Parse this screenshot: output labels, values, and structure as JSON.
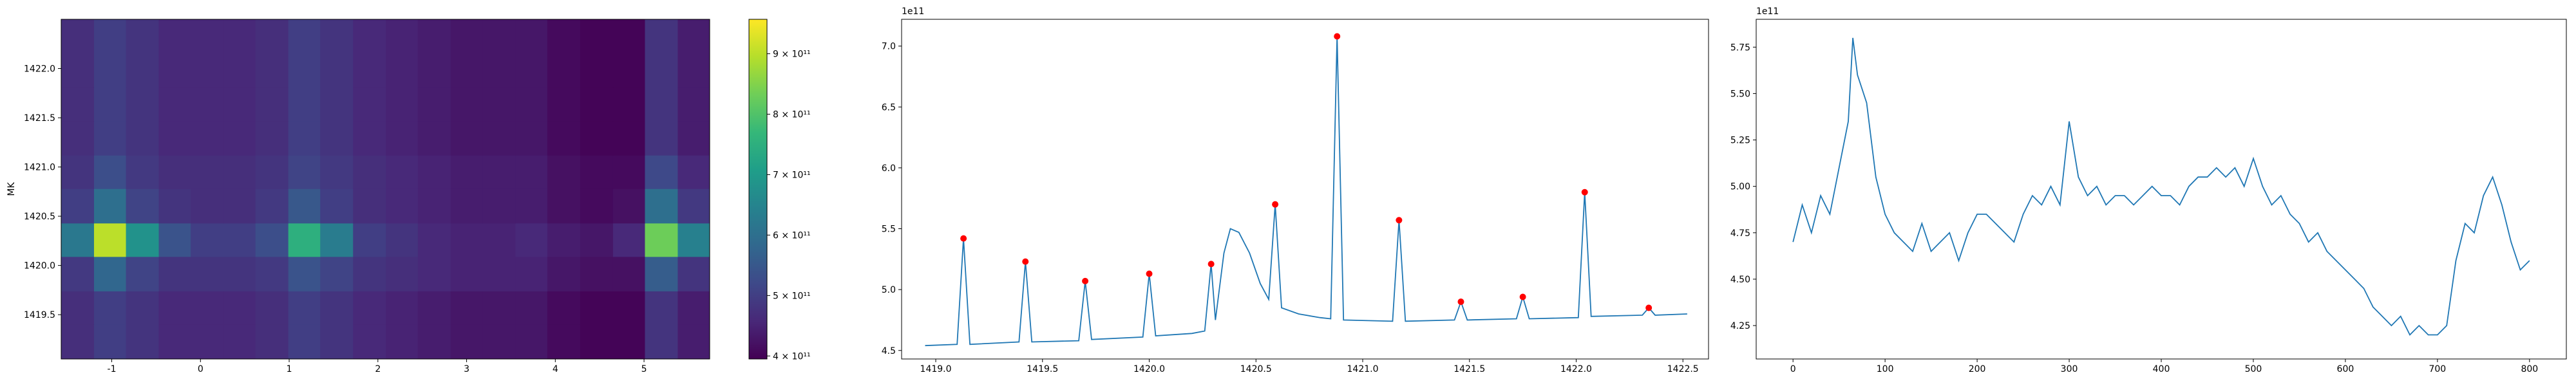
{
  "chart_data": [
    {
      "type": "heatmap",
      "ylabel": "MK",
      "x_edges": [
        -1.57,
        -1.2,
        -0.84,
        -0.47,
        -0.11,
        0.26,
        0.62,
        0.99,
        1.35,
        1.72,
        2.09,
        2.45,
        2.82,
        3.18,
        3.55,
        3.91,
        4.28,
        4.65,
        5.01,
        5.38,
        5.74
      ],
      "y_edges": [
        1419.05,
        1419.4,
        1419.74,
        1420.09,
        1420.43,
        1420.78,
        1421.12,
        1421.47,
        1421.81,
        1422.16,
        1422.5
      ],
      "z": [
        [
          470000000000.0,
          500000000000.0,
          480000000000.0,
          460000000000.0,
          460000000000.0,
          460000000000.0,
          470000000000.0,
          500000000000.0,
          480000000000.0,
          460000000000.0,
          450000000000.0,
          440000000000.0,
          430000000000.0,
          430000000000.0,
          430000000000.0,
          410000000000.0,
          400000000000.0,
          400000000000.0,
          480000000000.0,
          440000000000.0
        ],
        [
          470000000000.0,
          500000000000.0,
          480000000000.0,
          460000000000.0,
          460000000000.0,
          460000000000.0,
          470000000000.0,
          500000000000.0,
          480000000000.0,
          460000000000.0,
          450000000000.0,
          440000000000.0,
          430000000000.0,
          430000000000.0,
          430000000000.0,
          410000000000.0,
          400000000000.0,
          400000000000.0,
          480000000000.0,
          440000000000.0
        ],
        [
          490000000000.0,
          580000000000.0,
          510000000000.0,
          480000000000.0,
          480000000000.0,
          480000000000.0,
          490000000000.0,
          540000000000.0,
          510000000000.0,
          480000000000.0,
          470000000000.0,
          460000000000.0,
          450000000000.0,
          450000000000.0,
          450000000000.0,
          430000000000.0,
          420000000000.0,
          420000000000.0,
          560000000000.0,
          480000000000.0
        ],
        [
          620000000000.0,
          900000000000.0,
          680000000000.0,
          540000000000.0,
          500000000000.0,
          500000000000.0,
          530000000000.0,
          750000000000.0,
          630000000000.0,
          500000000000.0,
          480000000000.0,
          460000000000.0,
          450000000000.0,
          450000000000.0,
          460000000000.0,
          440000000000.0,
          430000000000.0,
          460000000000.0,
          830000000000.0,
          640000000000.0
        ],
        [
          500000000000.0,
          600000000000.0,
          510000000000.0,
          480000000000.0,
          470000000000.0,
          470000000000.0,
          490000000000.0,
          550000000000.0,
          500000000000.0,
          470000000000.0,
          460000000000.0,
          450000000000.0,
          440000000000.0,
          440000000000.0,
          440000000000.0,
          420000000000.0,
          410000000000.0,
          420000000000.0,
          600000000000.0,
          490000000000.0
        ],
        [
          480000000000.0,
          530000000000.0,
          490000000000.0,
          470000000000.0,
          470000000000.0,
          470000000000.0,
          480000000000.0,
          510000000000.0,
          490000000000.0,
          470000000000.0,
          460000000000.0,
          450000000000.0,
          440000000000.0,
          440000000000.0,
          440000000000.0,
          420000000000.0,
          410000000000.0,
          410000000000.0,
          520000000000.0,
          460000000000.0
        ],
        [
          470000000000.0,
          500000000000.0,
          480000000000.0,
          460000000000.0,
          460000000000.0,
          460000000000.0,
          470000000000.0,
          500000000000.0,
          480000000000.0,
          460000000000.0,
          450000000000.0,
          440000000000.0,
          430000000000.0,
          430000000000.0,
          430000000000.0,
          410000000000.0,
          400000000000.0,
          400000000000.0,
          480000000000.0,
          440000000000.0
        ],
        [
          470000000000.0,
          500000000000.0,
          480000000000.0,
          460000000000.0,
          460000000000.0,
          460000000000.0,
          470000000000.0,
          500000000000.0,
          480000000000.0,
          460000000000.0,
          450000000000.0,
          440000000000.0,
          430000000000.0,
          430000000000.0,
          430000000000.0,
          410000000000.0,
          400000000000.0,
          400000000000.0,
          480000000000.0,
          440000000000.0
        ],
        [
          470000000000.0,
          500000000000.0,
          480000000000.0,
          460000000000.0,
          460000000000.0,
          460000000000.0,
          470000000000.0,
          500000000000.0,
          480000000000.0,
          460000000000.0,
          450000000000.0,
          440000000000.0,
          430000000000.0,
          430000000000.0,
          430000000000.0,
          410000000000.0,
          400000000000.0,
          400000000000.0,
          480000000000.0,
          440000000000.0
        ],
        [
          470000000000.0,
          500000000000.0,
          480000000000.0,
          460000000000.0,
          460000000000.0,
          460000000000.0,
          470000000000.0,
          500000000000.0,
          480000000000.0,
          460000000000.0,
          450000000000.0,
          440000000000.0,
          430000000000.0,
          430000000000.0,
          430000000000.0,
          410000000000.0,
          400000000000.0,
          400000000000.0,
          480000000000.0,
          440000000000.0
        ]
      ],
      "colormap": [
        "#440154",
        "#482878",
        "#3e4989",
        "#31688e",
        "#26828e",
        "#1f9e89",
        "#35b779",
        "#6ece58",
        "#b5de2b",
        "#fde725"
      ],
      "xlim": [
        -1.57,
        5.74
      ],
      "ylim": [
        1419.05,
        1422.5
      ],
      "xticks": [
        -1,
        0,
        1,
        2,
        3,
        4,
        5
      ],
      "yticks": [
        1419.5,
        {
          "value": 1420,
          "label": "1420.0"
        },
        1420.5,
        {
          "value": 1421,
          "label": "1421.0"
        },
        1421.5,
        {
          "value": 1422,
          "label": "1422.0"
        }
      ],
      "zlim": [
        395000000000.0,
        957000000000.0
      ],
      "zticks": [
        {
          "value": 400000000000.0,
          "label": "4 × 10¹¹"
        },
        {
          "value": 500000000000.0,
          "label": "5 × 10¹¹"
        },
        {
          "value": 600000000000.0,
          "label": "6 × 10¹¹"
        },
        {
          "value": 700000000000.0,
          "label": "7 × 10¹¹"
        },
        {
          "value": 800000000000.0,
          "label": "8 × 10¹¹"
        },
        {
          "value": 900000000000.0,
          "label": "9 × 10¹¹"
        }
      ]
    },
    {
      "type": "line",
      "offset_label": "1e11",
      "xlim": [
        1418.84,
        1422.62
      ],
      "ylim": [
        4.43,
        7.22
      ],
      "xticks": [
        {
          "value": 1419,
          "label": "1419.0"
        },
        1419.5,
        {
          "value": 1420,
          "label": "1420.0"
        },
        1420.5,
        {
          "value": 1421,
          "label": "1421.0"
        },
        1421.5,
        {
          "value": 1422,
          "label": "1422.0"
        },
        1422.5
      ],
      "yticks": [
        4.5,
        {
          "value": 5,
          "label": "5.0"
        },
        5.5,
        {
          "value": 6,
          "label": "6.0"
        },
        6.5,
        {
          "value": 7,
          "label": "7.0"
        }
      ],
      "series": [
        {
          "style": "line",
          "color": "#1f77b4",
          "x": [
            1418.95,
            1419.1,
            1419.13,
            1419.16,
            1419.39,
            1419.42,
            1419.45,
            1419.67,
            1419.7,
            1419.73,
            1419.97,
            1420.0,
            1420.03,
            1420.2,
            1420.26,
            1420.29,
            1420.31,
            1420.35,
            1420.38,
            1420.42,
            1420.47,
            1420.52,
            1420.56,
            1420.59,
            1420.62,
            1420.7,
            1420.8,
            1420.85,
            1420.88,
            1420.91,
            1421.14,
            1421.17,
            1421.2,
            1421.43,
            1421.46,
            1421.49,
            1421.72,
            1421.75,
            1421.78,
            1422.01,
            1422.04,
            1422.07,
            1422.31,
            1422.34,
            1422.37,
            1422.52
          ],
          "values": [
            4.54,
            4.55,
            5.42,
            4.55,
            4.57,
            5.23,
            4.57,
            4.58,
            5.07,
            4.59,
            4.61,
            5.13,
            4.62,
            4.64,
            4.66,
            5.21,
            4.75,
            5.3,
            5.5,
            5.47,
            5.3,
            5.05,
            4.92,
            5.7,
            4.85,
            4.8,
            4.77,
            4.76,
            7.08,
            4.75,
            4.74,
            5.57,
            4.74,
            4.75,
            4.9,
            4.75,
            4.76,
            4.94,
            4.76,
            4.77,
            5.8,
            4.78,
            4.79,
            4.85,
            4.79,
            4.8
          ]
        },
        {
          "style": "points",
          "color": "#ff0000",
          "x": [
            1419.13,
            1419.42,
            1419.7,
            1420.0,
            1420.29,
            1420.59,
            1420.88,
            1421.17,
            1421.46,
            1421.75,
            1422.04,
            1422.34
          ],
          "values": [
            5.42,
            5.23,
            5.07,
            5.13,
            5.21,
            5.7,
            7.08,
            5.57,
            4.9,
            4.94,
            5.8,
            4.85
          ]
        }
      ]
    },
    {
      "type": "line",
      "offset_label": "1e11",
      "xlim": [
        -40,
        840
      ],
      "ylim": [
        4.07,
        5.9
      ],
      "xticks": [
        0,
        100,
        200,
        300,
        400,
        500,
        600,
        700,
        800
      ],
      "yticks": [
        4.25,
        {
          "value": 4.5,
          "label": "4.50"
        },
        4.75,
        {
          "value": 5,
          "label": "5.00"
        },
        5.25,
        {
          "value": 5.5,
          "label": "5.50"
        },
        5.75
      ],
      "series": [
        {
          "style": "line",
          "color": "#1f77b4",
          "x": [
            0,
            10,
            20,
            30,
            40,
            50,
            60,
            65,
            70,
            80,
            90,
            100,
            110,
            120,
            130,
            140,
            150,
            160,
            170,
            180,
            190,
            200,
            210,
            220,
            230,
            240,
            250,
            260,
            270,
            280,
            290,
            300,
            310,
            320,
            330,
            340,
            350,
            360,
            370,
            380,
            390,
            400,
            410,
            420,
            430,
            440,
            450,
            460,
            470,
            480,
            490,
            500,
            510,
            520,
            530,
            540,
            550,
            560,
            570,
            580,
            590,
            600,
            610,
            620,
            630,
            640,
            650,
            660,
            670,
            680,
            690,
            700,
            710,
            720,
            730,
            740,
            750,
            760,
            770,
            780,
            790,
            800
          ],
          "values": [
            4.7,
            4.9,
            4.75,
            4.95,
            4.85,
            5.1,
            5.35,
            5.8,
            5.6,
            5.45,
            5.05,
            4.85,
            4.75,
            4.7,
            4.65,
            4.8,
            4.65,
            4.7,
            4.75,
            4.6,
            4.75,
            4.85,
            4.85,
            4.8,
            4.75,
            4.7,
            4.85,
            4.95,
            4.9,
            5.0,
            4.9,
            5.35,
            5.05,
            4.95,
            5.0,
            4.9,
            4.95,
            4.95,
            4.9,
            4.95,
            5.0,
            4.95,
            4.95,
            4.9,
            5.0,
            5.05,
            5.05,
            5.1,
            5.05,
            5.1,
            5.0,
            5.15,
            5.0,
            4.9,
            4.95,
            4.85,
            4.8,
            4.7,
            4.75,
            4.65,
            4.6,
            4.55,
            4.5,
            4.45,
            4.35,
            4.3,
            4.25,
            4.3,
            4.2,
            4.25,
            4.2,
            4.2,
            4.25,
            4.6,
            4.8,
            4.75,
            4.95,
            5.05,
            4.9,
            4.7,
            4.55,
            4.6
          ]
        }
      ]
    }
  ]
}
